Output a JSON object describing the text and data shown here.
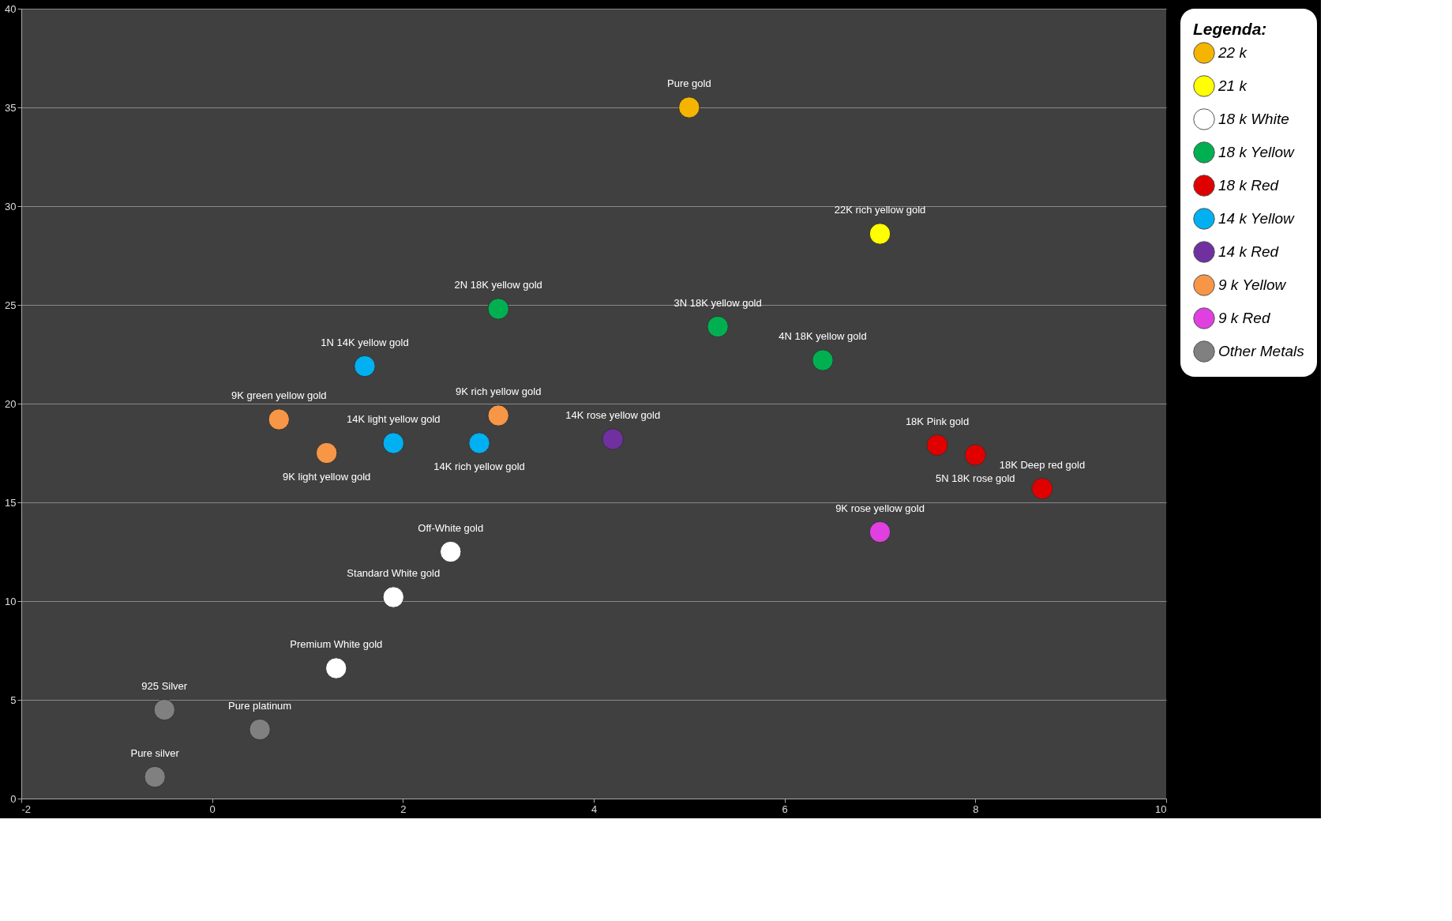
{
  "chart_data": {
    "type": "scatter",
    "legend_title": "Legenda:",
    "legend": "right",
    "grid": "y",
    "marker": "circle",
    "xlim": [
      -2,
      10
    ],
    "xticks": [
      -2,
      0,
      2,
      4,
      6,
      8,
      10
    ],
    "ylim": [
      0,
      40
    ],
    "yticks": [
      0,
      5,
      10,
      15,
      20,
      25,
      30,
      35,
      40
    ],
    "series": [
      {
        "name": "22 k",
        "color": "#f5b400",
        "x": [
          5
        ],
        "values": [
          35
        ]
      },
      {
        "name": "21 k",
        "color": "#ffff00",
        "x": [
          7
        ],
        "values": [
          28.6
        ]
      },
      {
        "name": "18 k White",
        "color": "#ffffff",
        "x": [
          2.5,
          1.9,
          1.3
        ],
        "values": [
          12.5,
          10.2,
          6.6
        ]
      },
      {
        "name": "18 k Yellow",
        "color": "#00b050",
        "x": [
          3,
          5.3,
          6.4
        ],
        "values": [
          24.8,
          23.9,
          22.2
        ]
      },
      {
        "name": "18 k Red",
        "color": "#e00000",
        "x": [
          7.6,
          8,
          8.7
        ],
        "values": [
          17.9,
          17.4,
          15.7
        ]
      },
      {
        "name": "14 k Yellow",
        "color": "#00b0f0",
        "x": [
          1.6,
          1.9,
          2.8
        ],
        "values": [
          21.9,
          18,
          18
        ]
      },
      {
        "name": "14 k Red",
        "color": "#7030a0",
        "x": [
          4.2
        ],
        "values": [
          18.2
        ]
      },
      {
        "name": "9 k Yellow",
        "color": "#f79646",
        "x": [
          0.7,
          3,
          1.2
        ],
        "values": [
          19.2,
          19.4,
          17.5
        ]
      },
      {
        "name": "9 k Red",
        "color": "#e040e0",
        "x": [
          7
        ],
        "values": [
          13.5
        ]
      },
      {
        "name": "Other Metals",
        "color": "#808080",
        "x": [
          -0.5,
          0.5,
          -0.6
        ],
        "values": [
          4.5,
          3.5,
          1.1
        ]
      }
    ],
    "annotations": [
      {
        "text": "Pure gold",
        "x": 5,
        "y": 35
      },
      {
        "text": "22K rich yellow gold",
        "x": 7,
        "y": 28.6
      },
      {
        "text": "Off-White gold",
        "x": 2.5,
        "y": 12.5
      },
      {
        "text": "Standard White gold",
        "x": 1.9,
        "y": 10.2
      },
      {
        "text": "Premium White gold",
        "x": 1.3,
        "y": 6.6
      },
      {
        "text": "2N 18K yellow gold",
        "x": 3,
        "y": 24.8
      },
      {
        "text": "3N 18K yellow gold",
        "x": 5.3,
        "y": 23.9
      },
      {
        "text": "4N 18K yellow gold",
        "x": 6.4,
        "y": 22.2
      },
      {
        "text": "18K Pink gold",
        "x": 7.6,
        "y": 17.9
      },
      {
        "text": "5N 18K rose gold",
        "x": 8,
        "y": 17.4
      },
      {
        "text": "18K Deep red gold",
        "x": 8.7,
        "y": 15.7
      },
      {
        "text": "1N 14K yellow gold",
        "x": 1.6,
        "y": 21.9
      },
      {
        "text": "14K light yellow gold",
        "x": 1.9,
        "y": 18
      },
      {
        "text": "14K rich yellow gold",
        "x": 2.8,
        "y": 18
      },
      {
        "text": "14K rose yellow gold",
        "x": 4.2,
        "y": 18.2
      },
      {
        "text": "9K green yellow gold",
        "x": 0.7,
        "y": 19.2
      },
      {
        "text": "9K rich yellow gold",
        "x": 3,
        "y": 19.4
      },
      {
        "text": "9K light yellow gold",
        "x": 1.2,
        "y": 17.5
      },
      {
        "text": "9K rose yellow gold",
        "x": 7,
        "y": 13.5
      },
      {
        "text": "925 Silver",
        "x": -0.5,
        "y": 4.5
      },
      {
        "text": "Pure platinum",
        "x": 0.5,
        "y": 3.5
      },
      {
        "text": "Pure silver",
        "x": -0.6,
        "y": 1.1
      }
    ]
  }
}
